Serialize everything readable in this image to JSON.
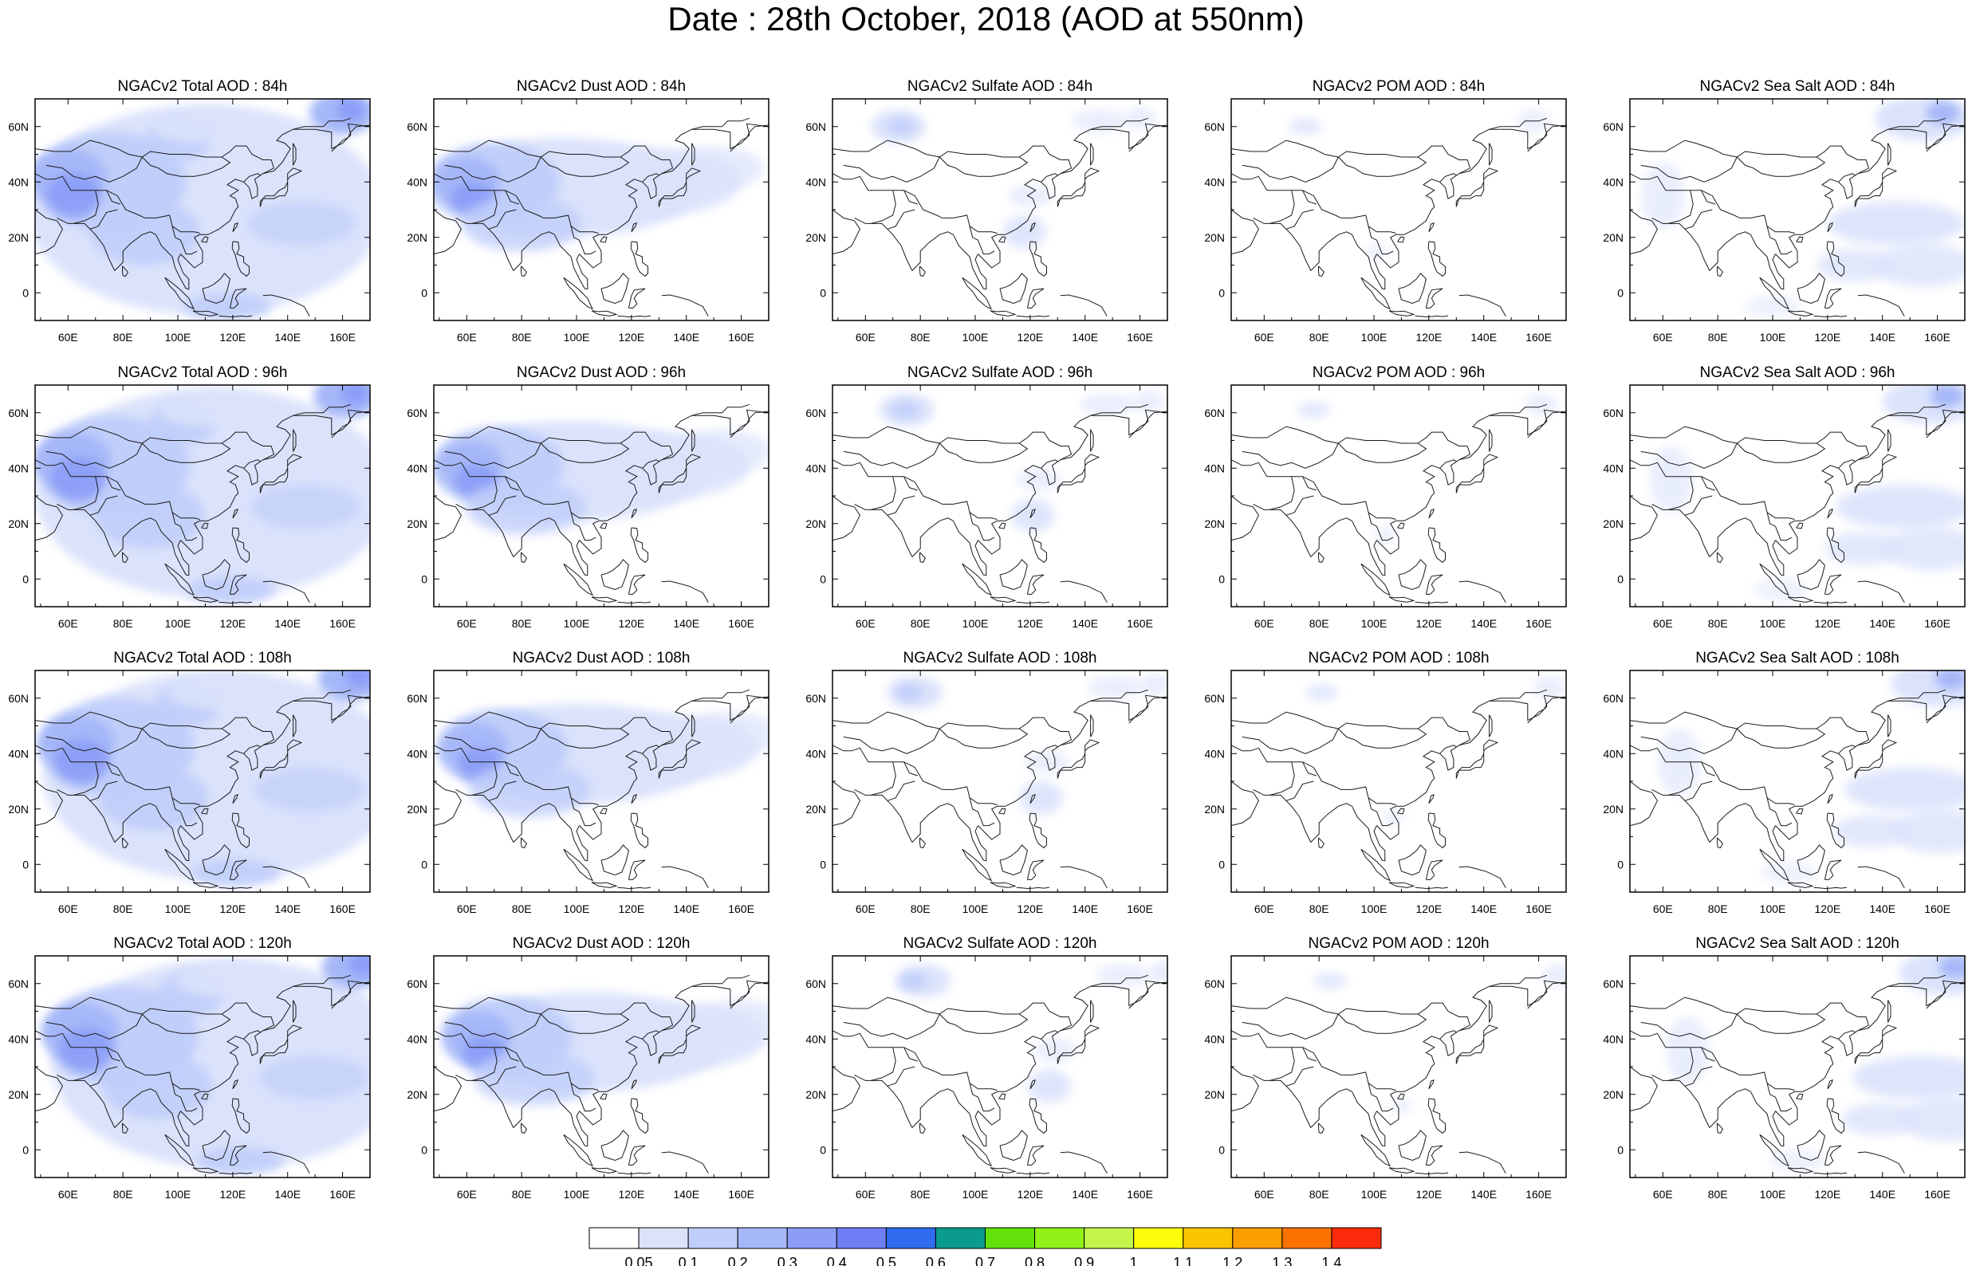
{
  "figure_title": "Date : 28th October, 2018 (AOD at 550nm)",
  "colors": {
    "frame": "#000000",
    "coastline": "#1a1a1a",
    "background": "#ffffff"
  },
  "panels": [
    {
      "title": "NGACv2 Total AOD : 84h",
      "field": "total",
      "lead": "84h"
    },
    {
      "title": "NGACv2 Dust AOD : 84h",
      "field": "dust",
      "lead": "84h"
    },
    {
      "title": "NGACv2 Sulfate AOD : 84h",
      "field": "sulfate",
      "lead": "84h"
    },
    {
      "title": "NGACv2 POM AOD : 84h",
      "field": "pom",
      "lead": "84h"
    },
    {
      "title": "NGACv2 Sea Salt AOD : 84h",
      "field": "seasalt",
      "lead": "84h"
    },
    {
      "title": "NGACv2 Total AOD : 96h",
      "field": "total",
      "lead": "96h"
    },
    {
      "title": "NGACv2 Dust AOD : 96h",
      "field": "dust",
      "lead": "96h"
    },
    {
      "title": "NGACv2 Sulfate AOD : 96h",
      "field": "sulfate",
      "lead": "96h"
    },
    {
      "title": "NGACv2 POM AOD : 96h",
      "field": "pom",
      "lead": "96h"
    },
    {
      "title": "NGACv2 Sea Salt AOD : 96h",
      "field": "seasalt",
      "lead": "96h"
    },
    {
      "title": "NGACv2 Total AOD : 108h",
      "field": "total",
      "lead": "108h"
    },
    {
      "title": "NGACv2 Dust AOD : 108h",
      "field": "dust",
      "lead": "108h"
    },
    {
      "title": "NGACv2 Sulfate AOD : 108h",
      "field": "sulfate",
      "lead": "108h"
    },
    {
      "title": "NGACv2 POM AOD : 108h",
      "field": "pom",
      "lead": "108h"
    },
    {
      "title": "NGACv2 Sea Salt AOD : 108h",
      "field": "seasalt",
      "lead": "108h"
    },
    {
      "title": "NGACv2 Total AOD : 120h",
      "field": "total",
      "lead": "120h"
    },
    {
      "title": "NGACv2 Dust AOD : 120h",
      "field": "dust",
      "lead": "120h"
    },
    {
      "title": "NGACv2 Sulfate AOD : 120h",
      "field": "sulfate",
      "lead": "120h"
    },
    {
      "title": "NGACv2 POM AOD : 120h",
      "field": "pom",
      "lead": "120h"
    },
    {
      "title": "NGACv2 Sea Salt  AOD : 120h",
      "field": "seasalt",
      "lead": "120h"
    }
  ],
  "map": {
    "lon_range": [
      48,
      170
    ],
    "lat_range": [
      -10,
      70
    ],
    "lon_ticks": [
      {
        "value": 60,
        "label": "60E"
      },
      {
        "value": 80,
        "label": "80E"
      },
      {
        "value": 100,
        "label": "100E"
      },
      {
        "value": 120,
        "label": "120E"
      },
      {
        "value": 140,
        "label": "140E"
      },
      {
        "value": 160,
        "label": "160E"
      }
    ],
    "lat_ticks": [
      {
        "value": 60,
        "label": "60N"
      },
      {
        "value": 40,
        "label": "40N"
      },
      {
        "value": 20,
        "label": "20N"
      },
      {
        "value": 0,
        "label": "0"
      }
    ]
  },
  "colorbar": {
    "colors": [
      "#ffffff",
      "#dbe3fb",
      "#c0cefa",
      "#a5b7f8",
      "#8b9df7",
      "#6f7ef5",
      "#2f6cf0",
      "#0b9b8d",
      "#62e10a",
      "#91f21a",
      "#c3f54a",
      "#fdfd0b",
      "#fbc400",
      "#fb9e00",
      "#fb7200",
      "#fa2a0a"
    ],
    "labels": [
      "0.05",
      "0.1",
      "0.2",
      "0.3",
      "0.4",
      "0.5",
      "0.6",
      "0.7",
      "0.8",
      "0.9",
      "1",
      "1.1",
      "1.2",
      "1.3",
      "1.4"
    ]
  }
}
